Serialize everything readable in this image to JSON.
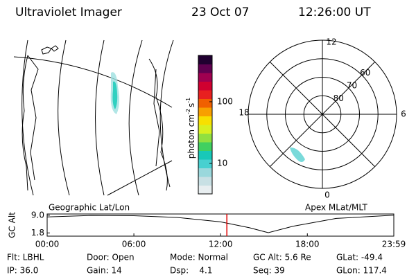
{
  "header": {
    "instrument": "Ultraviolet Imager",
    "date": "23 Oct 07",
    "time": "12:26:00 UT"
  },
  "colorbar": {
    "label": "photon cm",
    "exp1": "-2",
    "unit2": "s",
    "exp2": "-1",
    "clim": [
      3.2,
      565
    ],
    "log": true,
    "ticks": [
      10,
      100
    ],
    "colors": [
      "#e8eef0",
      "#c8e0e4",
      "#9ad8dc",
      "#48d0d0",
      "#18c8b8",
      "#40d060",
      "#90e040",
      "#d8f020",
      "#f8e000",
      "#f8a000",
      "#f06000",
      "#e82020",
      "#d00030",
      "#a00050",
      "#600050",
      "#200030"
    ]
  },
  "polar": {
    "lat_min": 50,
    "rings": [
      80,
      70,
      60
    ],
    "mlt_labels": [
      "12",
      "6",
      "0",
      "18"
    ]
  },
  "orbit": {
    "map_label": "Geographic Lat/Lon",
    "polar_label": "Apex MLat/MLT",
    "ylabel": "GC Alt",
    "ylim": [
      0.5,
      9.5
    ],
    "yticks": [
      {
        "value": 9.0,
        "label": "9.0"
      },
      {
        "value": 1.8,
        "label": "1.8"
      }
    ],
    "xlim": [
      0,
      23.983
    ],
    "xticks": [
      {
        "value": 0,
        "label": "00:00"
      },
      {
        "value": 6,
        "label": "06:00"
      },
      {
        "value": 12,
        "label": "12:00"
      },
      {
        "value": 18,
        "label": "18:00"
      },
      {
        "value": 23.983,
        "label": "23:59"
      }
    ],
    "x": [
      0,
      3,
      6,
      9,
      12,
      14,
      15.3,
      17,
      20,
      23.983
    ],
    "altitude": [
      8.3,
      8.9,
      8.8,
      8.1,
      6.3,
      3.9,
      1.9,
      4.5,
      7.7,
      9.0
    ],
    "marker": 12.433,
    "marker_color": "#e00000"
  },
  "footer": [
    [
      "Flt: LBHL",
      "Door: Open",
      "Mode: Normal",
      "GC Alt: 5.6 Re",
      "GLat: -49.4"
    ],
    [
      "IP: 36.0",
      "Gain: 14",
      "Dsp:    4.1",
      "Seq: 39",
      "GLon: 117.4"
    ]
  ]
}
